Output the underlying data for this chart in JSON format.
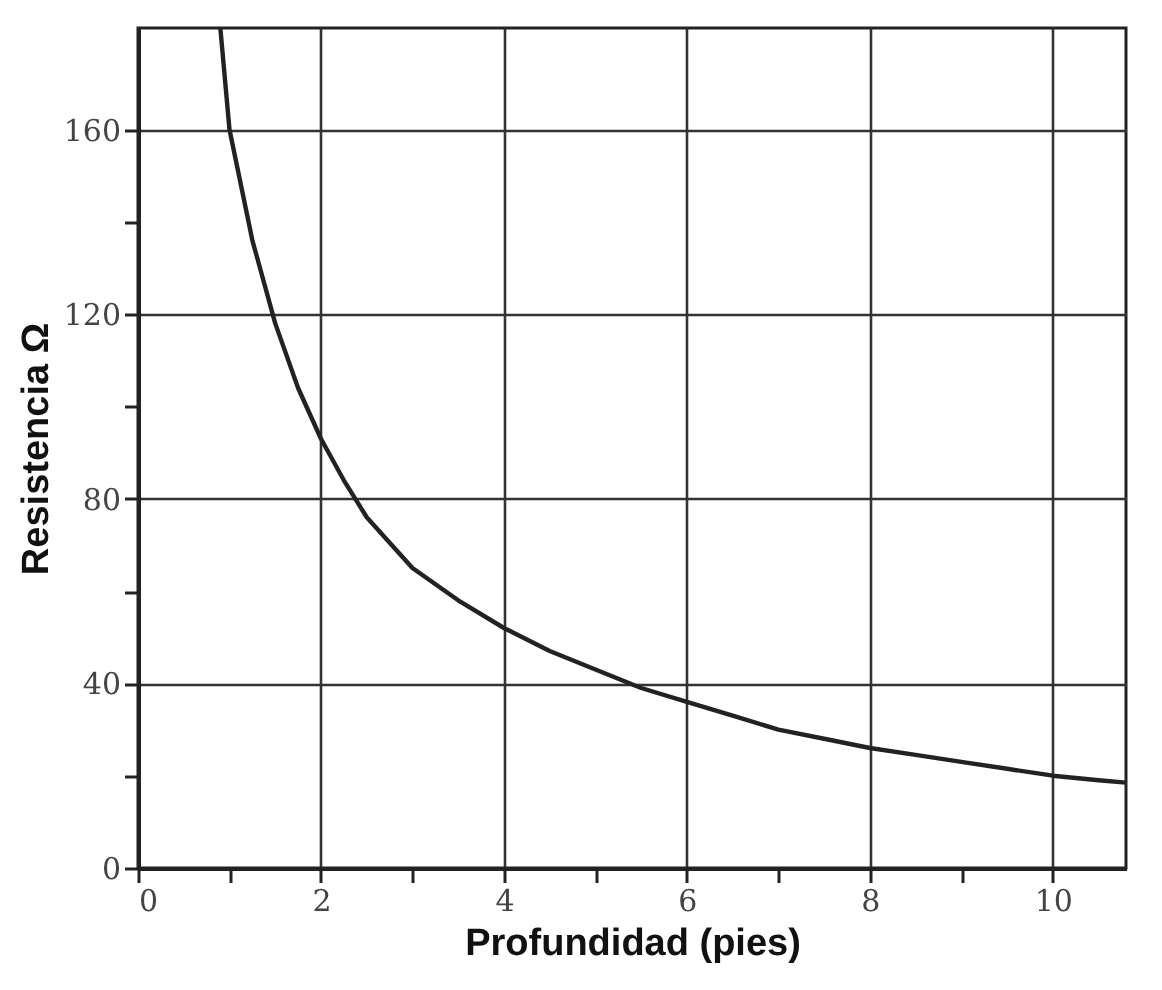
{
  "chart_data": {
    "type": "line",
    "xlabel": "Profundidad (pies)",
    "ylabel": "Resistencia Ω",
    "x": [
      0.9,
      1,
      1.25,
      1.5,
      1.75,
      2,
      2.25,
      2.5,
      3,
      3.5,
      4,
      4.5,
      5,
      5.5,
      6,
      6.5,
      7,
      7.5,
      8,
      8.5,
      9,
      9.5,
      10,
      10.5,
      10.8
    ],
    "series": [
      {
        "color": "#222222",
        "values": [
          182,
          160,
          136,
          118,
          104,
          93,
          84,
          76,
          65,
          58,
          52,
          47,
          43,
          39,
          36,
          33,
          30,
          28,
          26,
          24.5,
          23,
          21.5,
          20,
          19,
          18.5
        ]
      }
    ],
    "xlim": [
      0,
      10.8
    ],
    "ylim": [
      0,
      182
    ],
    "xticks": [
      0,
      {
        "value": 1,
        "label": null
      },
      2,
      {
        "value": 3,
        "label": null
      },
      4,
      {
        "value": 5,
        "label": null
      },
      6,
      {
        "value": 7,
        "label": null
      },
      8,
      {
        "value": 9,
        "label": null
      },
      10
    ],
    "yticks": [
      0,
      {
        "value": 20,
        "label": null
      },
      40,
      {
        "value": 60,
        "label": null
      },
      80,
      {
        "value": 100,
        "label": null
      },
      120,
      {
        "value": 140,
        "label": null
      },
      160
    ],
    "grid": true,
    "marker": "none",
    "line_style": "solid"
  }
}
